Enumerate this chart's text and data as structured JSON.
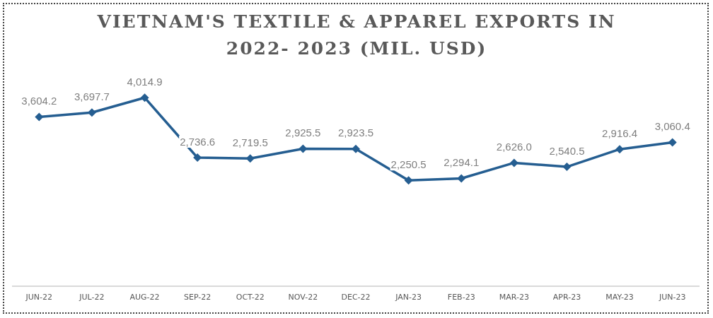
{
  "chart_data": {
    "type": "line",
    "title": "VIETNAM'S TEXTILE & APPAREL EXPORTS IN 2022- 2023 (MIL. USD)",
    "categories": [
      "JUN-22",
      "JUL-22",
      "AUG-22",
      "SEP-22",
      "OCT-22",
      "NOV-22",
      "DEC-22",
      "JAN-23",
      "FEB-23",
      "MAR-23",
      "APR-23",
      "MAY-23",
      "JUN-23"
    ],
    "series": [
      {
        "color": "#255e91",
        "values": [
          3604.2,
          3697.7,
          4014.9,
          2736.6,
          2719.5,
          2925.5,
          2923.5,
          2250.5,
          2294.1,
          2626.0,
          2540.5,
          2916.4,
          3060.4
        ],
        "value_labels": [
          "3,604.2",
          "3,697.7",
          "4,014.9",
          "2,736.6",
          "2,719.5",
          "2,925.5",
          "2,923.5",
          "2,250.5",
          "2,294.1",
          "2,626.0",
          "2,540.5",
          "2,916.4",
          "3,060.4"
        ]
      }
    ],
    "marker": "diamond",
    "line_style": "solid",
    "grid": false,
    "legend": false
  }
}
